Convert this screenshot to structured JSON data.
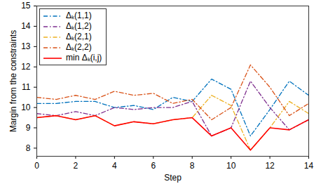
{
  "chart_data": {
    "type": "line",
    "x_label": "Step",
    "y_label": "Margin from the constraints",
    "x": [
      0,
      1,
      2,
      3,
      4,
      5,
      6,
      7,
      8,
      9,
      10,
      11,
      12,
      13,
      14
    ],
    "series": [
      {
        "name": "Δₖ(1,1)",
        "color": "#0072BD",
        "line_style": "dashdot",
        "values": [
          10.2,
          10.2,
          10.3,
          10.3,
          10.0,
          10.1,
          9.9,
          10.5,
          10.3,
          11.4,
          10.9,
          8.6,
          9.9,
          11.3,
          10.6
        ]
      },
      {
        "name": "Δₖ(1,2)",
        "color": "#7E2F8E",
        "line_style": "dashdot",
        "values": [
          9.7,
          9.6,
          9.8,
          9.6,
          10.0,
          9.9,
          10.0,
          10.0,
          10.3,
          8.6,
          9.0,
          11.3,
          10.0,
          8.9,
          9.4
        ]
      },
      {
        "name": "Δₖ(2,1)",
        "color": "#EDB120",
        "line_style": "dashdot",
        "values": [
          9.5,
          9.6,
          9.4,
          9.6,
          9.1,
          9.3,
          9.2,
          9.4,
          9.5,
          10.6,
          10.1,
          7.9,
          9.0,
          10.3,
          9.7
        ]
      },
      {
        "name": "Δₖ(2,2)",
        "color": "#D95319",
        "line_style": "dashdot",
        "values": [
          10.5,
          10.4,
          10.6,
          10.4,
          10.8,
          10.6,
          10.7,
          10.2,
          10.4,
          9.4,
          10.0,
          12.1,
          11.0,
          9.6,
          10.2
        ]
      },
      {
        "name": "min Δₖ(i,j)",
        "color": "#FF0000",
        "line_style": "solid",
        "values": [
          9.5,
          9.6,
          9.4,
          9.6,
          9.1,
          9.3,
          9.2,
          9.4,
          9.5,
          8.6,
          9.0,
          7.9,
          9.0,
          8.9,
          9.4
        ]
      }
    ],
    "xlim": [
      0,
      14
    ],
    "xticks": [
      0,
      2,
      4,
      6,
      8,
      10,
      12,
      14
    ],
    "ylim": [
      7.6,
      15
    ],
    "yticks": [
      8,
      9,
      10,
      11,
      12,
      13,
      14,
      15
    ],
    "grid": false,
    "legend": "upper left"
  }
}
